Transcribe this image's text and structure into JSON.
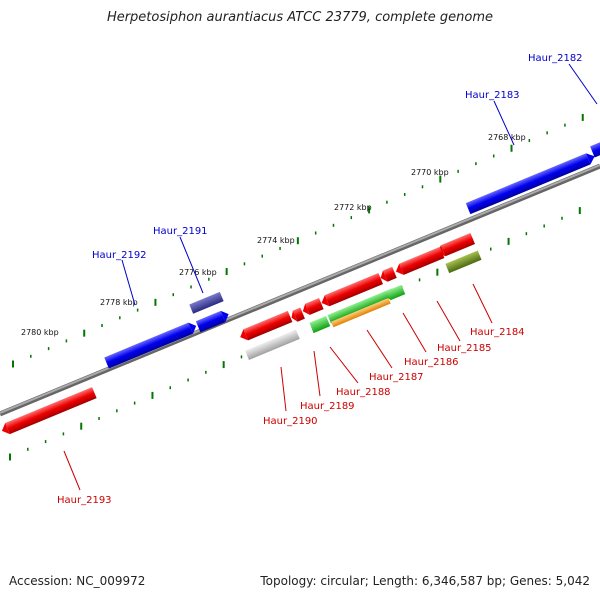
{
  "title": "Herpetosiphon aurantiacus ATCC 23779, complete genome",
  "accession_label": "Accession: NC_009972",
  "topology_label": "Topology: circular; Length: 6,346,587 bp; Genes: 5,042",
  "scale_labels": [
    "2768 kbp",
    "2770 kbp",
    "2772 kbp",
    "2774 kbp",
    "2776 kbp",
    "2778 kbp",
    "2780 kbp"
  ],
  "forward_genes": [
    {
      "name": "Haur_2182",
      "color": "#0000ee"
    },
    {
      "name": "Haur_2183",
      "color": "#0000ee"
    },
    {
      "name": "Haur_2191",
      "color": "#3a3a9a"
    },
    {
      "name": "Haur_2192",
      "color": "#0000ee"
    }
  ],
  "reverse_genes": [
    {
      "name": "Haur_2184",
      "color": "#ee0000"
    },
    {
      "name": "Haur_2185",
      "color": "#ee0000"
    },
    {
      "name": "Haur_2186",
      "color": "#ee0000"
    },
    {
      "name": "Haur_2187",
      "color": "#ee0000"
    },
    {
      "name": "Haur_2188",
      "color": "#ee0000"
    },
    {
      "name": "Haur_2189",
      "color": "#ee0000"
    },
    {
      "name": "Haur_2190",
      "color": "#ee0000"
    },
    {
      "name": "Haur_2193",
      "color": "#ee0000"
    }
  ],
  "colors": {
    "forward": "#0000ee",
    "reverse": "#ee0000",
    "backbone": "#808080",
    "tick": "#007700",
    "olive": "#6b8e23",
    "green": "#33cc33",
    "orange": "#ff9900",
    "gray": "#bbbbbb",
    "purple": "#3a3a9a"
  }
}
